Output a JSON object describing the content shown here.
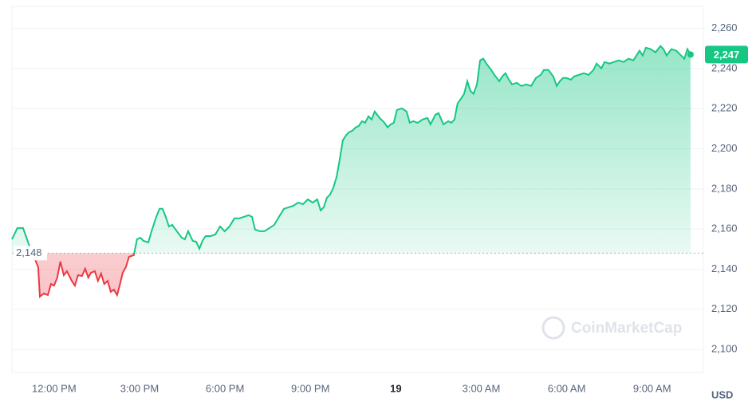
{
  "chart_data": {
    "type": "line",
    "x": [
      10.52,
      10.71,
      10.91,
      11.05,
      11.1,
      11.44,
      11.5,
      11.64,
      11.78,
      11.89,
      12.0,
      12.11,
      12.22,
      12.34,
      12.45,
      12.62,
      12.73,
      12.84,
      12.98,
      13.09,
      13.2,
      13.29,
      13.43,
      13.54,
      13.65,
      13.76,
      13.88,
      13.99,
      14.1,
      14.21,
      14.3,
      14.41,
      14.52,
      14.63,
      14.8,
      14.91,
      15.03,
      15.14,
      15.31,
      15.42,
      15.59,
      15.7,
      15.81,
      15.92,
      16.03,
      16.15,
      16.31,
      16.48,
      16.59,
      16.71,
      16.87,
      16.99,
      17.1,
      17.21,
      17.32,
      17.49,
      17.66,
      17.83,
      17.99,
      18.16,
      18.33,
      18.5,
      18.67,
      18.83,
      18.95,
      19.06,
      19.23,
      19.39,
      19.56,
      19.73,
      19.9,
      20.07,
      20.24,
      20.4,
      20.57,
      20.74,
      20.91,
      21.08,
      21.24,
      21.36,
      21.47,
      21.58,
      21.69,
      21.8,
      21.92,
      22.03,
      22.14,
      22.25,
      22.36,
      22.48,
      22.59,
      22.7,
      22.81,
      22.92,
      23.04,
      23.15,
      23.26,
      23.43,
      23.6,
      23.71,
      23.82,
      23.93,
      24.04,
      24.21,
      24.38,
      24.49,
      24.61,
      24.77,
      24.94,
      25.11,
      25.22,
      25.39,
      25.5,
      25.67,
      25.84,
      25.95,
      26.06,
      26.17,
      26.29,
      26.4,
      26.51,
      26.62,
      26.73,
      26.85,
      26.96,
      27.07,
      27.18,
      27.35,
      27.46,
      27.63,
      27.74,
      27.85,
      27.97,
      28.08,
      28.25,
      28.41,
      28.58,
      28.75,
      28.92,
      29.09,
      29.2,
      29.36,
      29.53,
      29.65,
      29.76,
      29.87,
      29.98,
      30.15,
      30.26,
      30.43,
      30.6,
      30.77,
      30.94,
      31.05,
      31.22,
      31.33,
      31.5,
      31.66,
      31.83,
      32.0,
      32.17,
      32.34,
      32.45,
      32.56,
      32.67,
      32.78,
      32.95,
      33.12,
      33.29,
      33.4,
      33.51,
      33.68,
      33.85,
      33.96,
      34.13,
      34.24,
      34.35
    ],
    "values": [
      2154.9,
      2160.5,
      2160.5,
      2154.9,
      2152.9,
      2141.0,
      2126.3,
      2127.9,
      2127.1,
      2132.6,
      2131.8,
      2135.8,
      2143.8,
      2137.0,
      2139.0,
      2134.2,
      2131.8,
      2137.0,
      2136.6,
      2140.2,
      2135.8,
      2138.2,
      2139.0,
      2134.2,
      2137.8,
      2132.6,
      2134.2,
      2128.7,
      2129.8,
      2127.1,
      2131.8,
      2138.2,
      2141.0,
      2146.2,
      2147.0,
      2154.9,
      2155.7,
      2154.1,
      2153.3,
      2158.9,
      2166.1,
      2170.1,
      2170.1,
      2166.1,
      2161.3,
      2162.1,
      2158.9,
      2155.7,
      2154.9,
      2158.9,
      2154.1,
      2153.7,
      2150.2,
      2154.1,
      2156.5,
      2156.5,
      2157.3,
      2161.3,
      2158.9,
      2161.3,
      2165.3,
      2165.3,
      2166.1,
      2166.9,
      2166.1,
      2159.7,
      2158.9,
      2158.9,
      2160.5,
      2162.1,
      2166.1,
      2170.1,
      2170.9,
      2171.6,
      2173.2,
      2172.4,
      2174.8,
      2173.2,
      2174.8,
      2169.3,
      2170.9,
      2175.6,
      2177.2,
      2180.4,
      2186.0,
      2194.7,
      2204.3,
      2206.7,
      2208.3,
      2209.1,
      2210.7,
      2211.4,
      2213.8,
      2213.0,
      2216.2,
      2214.6,
      2218.6,
      2215.4,
      2213.0,
      2210.7,
      2212.2,
      2213.0,
      2219.4,
      2220.2,
      2218.6,
      2213.0,
      2213.8,
      2213.0,
      2214.6,
      2215.4,
      2212.2,
      2217.0,
      2217.8,
      2212.2,
      2213.8,
      2213.0,
      2214.6,
      2222.6,
      2225.0,
      2227.4,
      2233.7,
      2228.9,
      2227.4,
      2232.1,
      2244.1,
      2244.9,
      2242.5,
      2239.3,
      2236.9,
      2233.7,
      2236.1,
      2237.7,
      2234.5,
      2232.1,
      2232.9,
      2231.3,
      2232.1,
      2231.3,
      2235.3,
      2236.9,
      2239.3,
      2239.3,
      2236.1,
      2231.3,
      2233.7,
      2235.3,
      2235.3,
      2234.5,
      2236.1,
      2236.9,
      2237.7,
      2236.9,
      2239.3,
      2242.5,
      2240.1,
      2243.3,
      2242.5,
      2243.3,
      2244.1,
      2243.3,
      2244.9,
      2244.1,
      2246.5,
      2248.9,
      2246.5,
      2250.4,
      2249.7,
      2248.1,
      2251.2,
      2249.7,
      2246.5,
      2249.7,
      2248.9,
      2247.3,
      2244.9,
      2249.7,
      2247
    ],
    "up_color": "#16c784",
    "down_color": "#ea3943",
    "baseline": {
      "value": 2148,
      "label": "2,148"
    },
    "price_tag": "2,247",
    "xlim": [
      10.52,
      34.8
    ],
    "ylim": [
      2088.5,
      2271
    ],
    "xticks": [
      {
        "value": 12,
        "label": "12:00 PM"
      },
      {
        "value": 15,
        "label": "3:00 PM"
      },
      {
        "value": 18,
        "label": "6:00 PM"
      },
      {
        "value": 21,
        "label": "9:00 PM"
      },
      {
        "value": 24,
        "label": "19"
      },
      {
        "value": 27,
        "label": "3:00 AM"
      },
      {
        "value": 30,
        "label": "6:00 AM"
      },
      {
        "value": 33,
        "label": "9:00 AM"
      }
    ],
    "yticks": [
      {
        "value": 2100,
        "label": "2,100"
      },
      {
        "value": 2120,
        "label": "2,120"
      },
      {
        "value": 2140,
        "label": "2,140"
      },
      {
        "value": 2160,
        "label": "2,160"
      },
      {
        "value": 2180,
        "label": "2,180"
      },
      {
        "value": 2200,
        "label": "2,200"
      },
      {
        "value": 2220,
        "label": "2,220"
      },
      {
        "value": 2240,
        "label": "2,240"
      },
      {
        "value": 2260,
        "label": "2,260"
      }
    ],
    "grid": true,
    "currency": "USD",
    "watermark": "CoinMarketCap"
  }
}
